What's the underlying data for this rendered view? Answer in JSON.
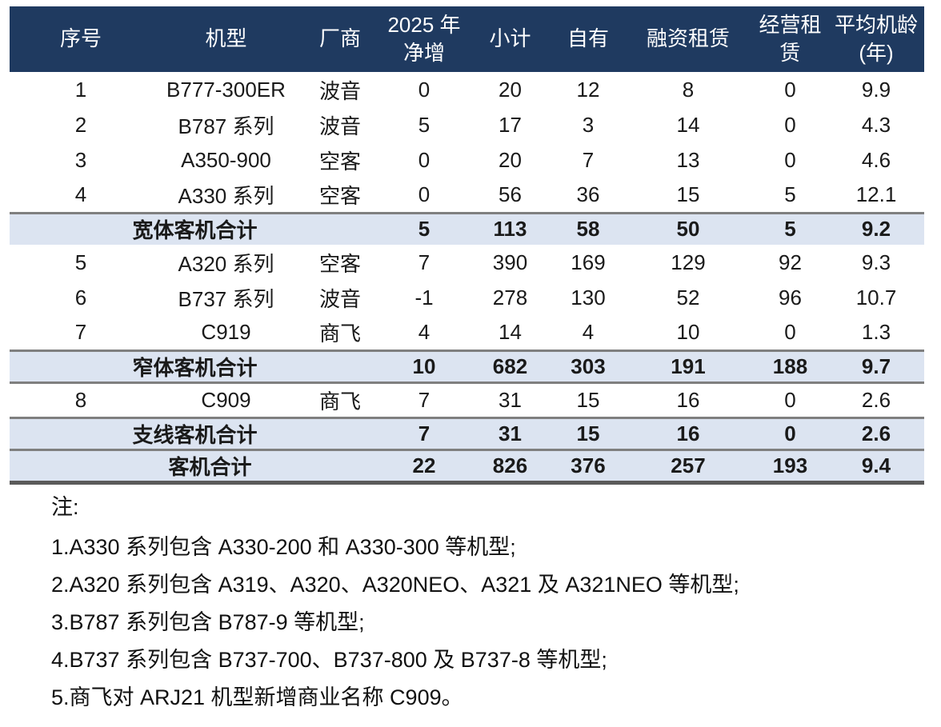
{
  "table": {
    "headers": [
      {
        "id": "index",
        "label": "序号"
      },
      {
        "id": "aircraft_model",
        "label": "机型"
      },
      {
        "id": "manufacturer",
        "label": "厂商"
      },
      {
        "id": "net_increase_2025",
        "label": "2025 年\n净增"
      },
      {
        "id": "subtotal",
        "label": "小计"
      },
      {
        "id": "owned",
        "label": "自有"
      },
      {
        "id": "finance_lease",
        "label": "融资租赁"
      },
      {
        "id": "operating_lease",
        "label": "经营租\n赁"
      },
      {
        "id": "average_age_years",
        "label": "平均机龄\n(年)"
      }
    ],
    "rows": [
      {
        "type": "data",
        "cells": [
          "1",
          "B777-300ER",
          "波音",
          "0",
          "20",
          "12",
          "8",
          "0",
          "9.9"
        ]
      },
      {
        "type": "data",
        "cells": [
          "2",
          "B787 系列",
          "波音",
          "5",
          "17",
          "3",
          "14",
          "0",
          "4.3"
        ]
      },
      {
        "type": "data",
        "cells": [
          "3",
          "A350-900",
          "空客",
          "0",
          "20",
          "7",
          "13",
          "0",
          "4.6"
        ]
      },
      {
        "type": "data",
        "cells": [
          "4",
          "A330 系列",
          "空客",
          "0",
          "56",
          "36",
          "15",
          "5",
          "12.1"
        ]
      },
      {
        "type": "subtotal",
        "borders": "top",
        "label": "宽体客机合计",
        "values": [
          "5",
          "113",
          "58",
          "50",
          "5",
          "9.2"
        ]
      },
      {
        "type": "data",
        "cells": [
          "5",
          "A320 系列",
          "空客",
          "7",
          "390",
          "169",
          "129",
          "92",
          "9.3"
        ]
      },
      {
        "type": "data",
        "cells": [
          "6",
          "B737 系列",
          "波音",
          "-1",
          "278",
          "130",
          "52",
          "96",
          "10.7"
        ]
      },
      {
        "type": "data",
        "cells": [
          "7",
          "C919",
          "商飞",
          "4",
          "14",
          "4",
          "10",
          "0",
          "1.3"
        ]
      },
      {
        "type": "subtotal",
        "borders": "top-bottom",
        "label": "窄体客机合计",
        "values": [
          "10",
          "682",
          "303",
          "191",
          "188",
          "9.7"
        ]
      },
      {
        "type": "data",
        "cells": [
          "8",
          "C909",
          "商飞",
          "7",
          "31",
          "15",
          "16",
          "0",
          "2.6"
        ]
      },
      {
        "type": "subtotal",
        "borders": "top-bottom",
        "label": "支线客机合计",
        "values": [
          "7",
          "31",
          "15",
          "16",
          "0",
          "2.6"
        ]
      },
      {
        "type": "total",
        "borders": "top-thick-bottom",
        "label": "客机合计",
        "values": [
          "22",
          "826",
          "376",
          "257",
          "193",
          "9.4"
        ]
      }
    ]
  },
  "notes": {
    "label": "注:",
    "items": [
      "1.A330 系列包含 A330-200 和 A330-300 等机型;",
      "2.A320 系列包含 A319、A320、A320NEO、A321 及 A321NEO 等机型;",
      "3.B787 系列包含 B787-9 等机型;",
      "4.B737 系列包含 B737-700、B737-800 及 B737-8 等机型;",
      "5.商飞对 ARJ21 机型新增商业名称 C909。"
    ]
  },
  "colors": {
    "header_bg": "#1F3A60",
    "header_text": "#FFFFFF",
    "subtotal_bg": "#DCE4F1",
    "border_gray": "#7F7F7F",
    "border_heavy": "#5A5A5A",
    "text": "#1A1A1A"
  }
}
